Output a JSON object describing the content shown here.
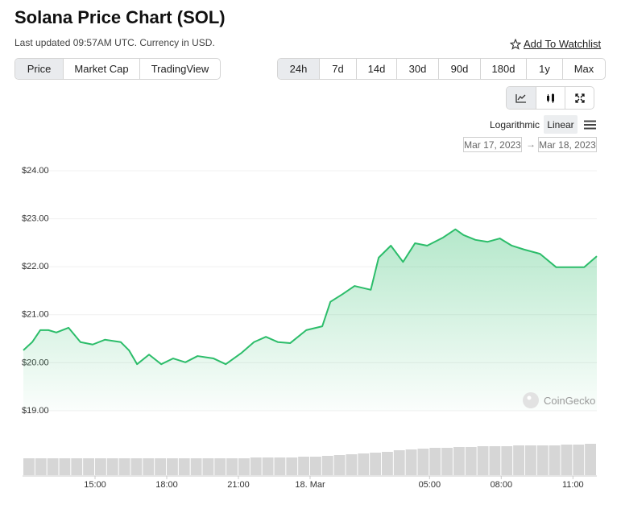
{
  "header": {
    "title": "Solana Price Chart (SOL)",
    "subtitle": "Last updated 09:57AM UTC. Currency in USD.",
    "watchlist": "Add To Watchlist"
  },
  "tabs": [
    "Price",
    "Market Cap",
    "TradingView"
  ],
  "ranges": [
    "24h",
    "7d",
    "14d",
    "30d",
    "90d",
    "180d",
    "1y",
    "Max"
  ],
  "scale_options": [
    "Logarithmic",
    "Linear"
  ],
  "date_range": {
    "from": "Mar 17, 2023",
    "separator": "→",
    "to": "Mar 18, 2023"
  },
  "watermark": "CoinGecko",
  "chart_data": {
    "type": "line",
    "series": [
      {
        "color": "#2cbd6a",
        "values": [
          20.26,
          20.43,
          20.68,
          20.68,
          20.63,
          20.73,
          20.43,
          20.38,
          20.48,
          20.43,
          20.26,
          19.97,
          20.17,
          19.97,
          20.09,
          20.01,
          20.14,
          20.09,
          19.97,
          20.21,
          20.43,
          20.54,
          20.43,
          20.41,
          20.68,
          20.76,
          21.27,
          21.43,
          21.6,
          21.52,
          22.19,
          22.44,
          22.1,
          22.49,
          22.44,
          22.61,
          22.78,
          22.66,
          22.56,
          22.52,
          22.59,
          22.44,
          22.36,
          22.27,
          21.99,
          21.99,
          21.99,
          22.22
        ]
      }
    ],
    "x": [
      12.0,
      12.37,
      12.71,
      13.05,
      13.38,
      13.89,
      14.39,
      14.9,
      15.41,
      16.08,
      16.42,
      16.76,
      17.26,
      17.77,
      18.27,
      18.78,
      19.29,
      19.96,
      20.47,
      21.14,
      21.65,
      22.15,
      22.66,
      23.17,
      23.84,
      24.51,
      24.85,
      25.36,
      25.86,
      26.54,
      26.87,
      27.38,
      27.89,
      28.39,
      28.9,
      29.57,
      30.08,
      30.42,
      30.92,
      31.43,
      31.94,
      32.44,
      32.95,
      33.62,
      34.3,
      34.97,
      35.47,
      36.0
    ],
    "xlim": [
      12,
      36
    ],
    "xticks": [
      {
        "value": 15,
        "label": "15:00"
      },
      {
        "value": 18,
        "label": "18:00"
      },
      {
        "value": 21,
        "label": "21:00"
      },
      {
        "value": 24,
        "label": "18. Mar"
      },
      {
        "value": 29,
        "label": "05:00"
      },
      {
        "value": 32,
        "label": "08:00"
      },
      {
        "value": 35,
        "label": "11:00"
      }
    ],
    "ylim": [
      19,
      24
    ],
    "yticks": [
      {
        "value": 24,
        "label": "$24.00"
      },
      {
        "value": 23,
        "label": "$23.00"
      },
      {
        "value": 22,
        "label": "$22.00"
      },
      {
        "value": 21,
        "label": "$21.00"
      },
      {
        "value": 20,
        "label": "$20.00"
      },
      {
        "value": 19,
        "label": "$19.00"
      }
    ],
    "grid": true,
    "volume": {
      "color": "#d6d6d6",
      "ylim": [
        0,
        40
      ],
      "x": [
        12.0,
        12.5,
        13.0,
        13.5,
        14.0,
        14.5,
        15.0,
        15.5,
        16.0,
        16.5,
        17.0,
        17.5,
        18.0,
        18.5,
        19.0,
        19.5,
        20.0,
        20.5,
        21.0,
        21.5,
        22.0,
        22.5,
        23.0,
        23.5,
        24.0,
        24.5,
        25.0,
        25.5,
        26.0,
        26.5,
        27.0,
        27.5,
        28.0,
        28.5,
        29.0,
        29.5,
        30.0,
        30.5,
        31.0,
        31.5,
        32.0,
        32.5,
        33.0,
        33.5,
        34.0,
        34.5,
        35.0,
        35.5
      ],
      "values": [
        21,
        21,
        21,
        21,
        21,
        21,
        21,
        21,
        21,
        21,
        21,
        21,
        21,
        21,
        21,
        21,
        21,
        21,
        21,
        22,
        22,
        22,
        22,
        23,
        23,
        24,
        25,
        26,
        27,
        28,
        29,
        31,
        32,
        33,
        34,
        34,
        35,
        35,
        36,
        36,
        36,
        37,
        37,
        37,
        37,
        38,
        38,
        39
      ]
    }
  }
}
